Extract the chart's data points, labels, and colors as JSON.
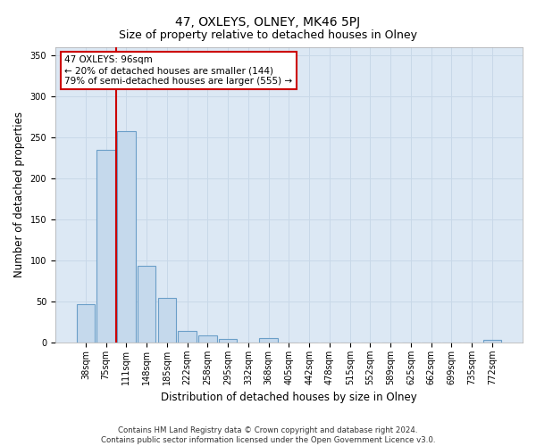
{
  "title": "47, OXLEYS, OLNEY, MK46 5PJ",
  "subtitle": "Size of property relative to detached houses in Olney",
  "xlabel": "Distribution of detached houses by size in Olney",
  "ylabel": "Number of detached properties",
  "categories": [
    "38sqm",
    "75sqm",
    "111sqm",
    "148sqm",
    "185sqm",
    "222sqm",
    "258sqm",
    "295sqm",
    "332sqm",
    "368sqm",
    "405sqm",
    "442sqm",
    "478sqm",
    "515sqm",
    "552sqm",
    "589sqm",
    "625sqm",
    "662sqm",
    "699sqm",
    "735sqm",
    "772sqm"
  ],
  "values": [
    47,
    235,
    257,
    93,
    54,
    14,
    9,
    4,
    0,
    5,
    0,
    0,
    0,
    0,
    0,
    0,
    0,
    0,
    0,
    0,
    3
  ],
  "bar_color": "#c5d9ec",
  "bar_edge_color": "#6b9fc8",
  "vline_color": "#cc0000",
  "vline_x": 1.5,
  "annotation_text": "47 OXLEYS: 96sqm\n← 20% of detached houses are smaller (144)\n79% of semi-detached houses are larger (555) →",
  "annotation_box_color": "#ffffff",
  "annotation_box_edge": "#cc0000",
  "ylim": [
    0,
    360
  ],
  "yticks": [
    0,
    50,
    100,
    150,
    200,
    250,
    300,
    350
  ],
  "grid_color": "#c8d8e8",
  "bg_color": "#dce8f4",
  "footer": "Contains HM Land Registry data © Crown copyright and database right 2024.\nContains public sector information licensed under the Open Government Licence v3.0.",
  "title_fontsize": 10,
  "subtitle_fontsize": 9,
  "axis_label_fontsize": 8.5,
  "tick_fontsize": 7,
  "annot_fontsize": 7.5,
  "footer_fontsize": 6.2
}
